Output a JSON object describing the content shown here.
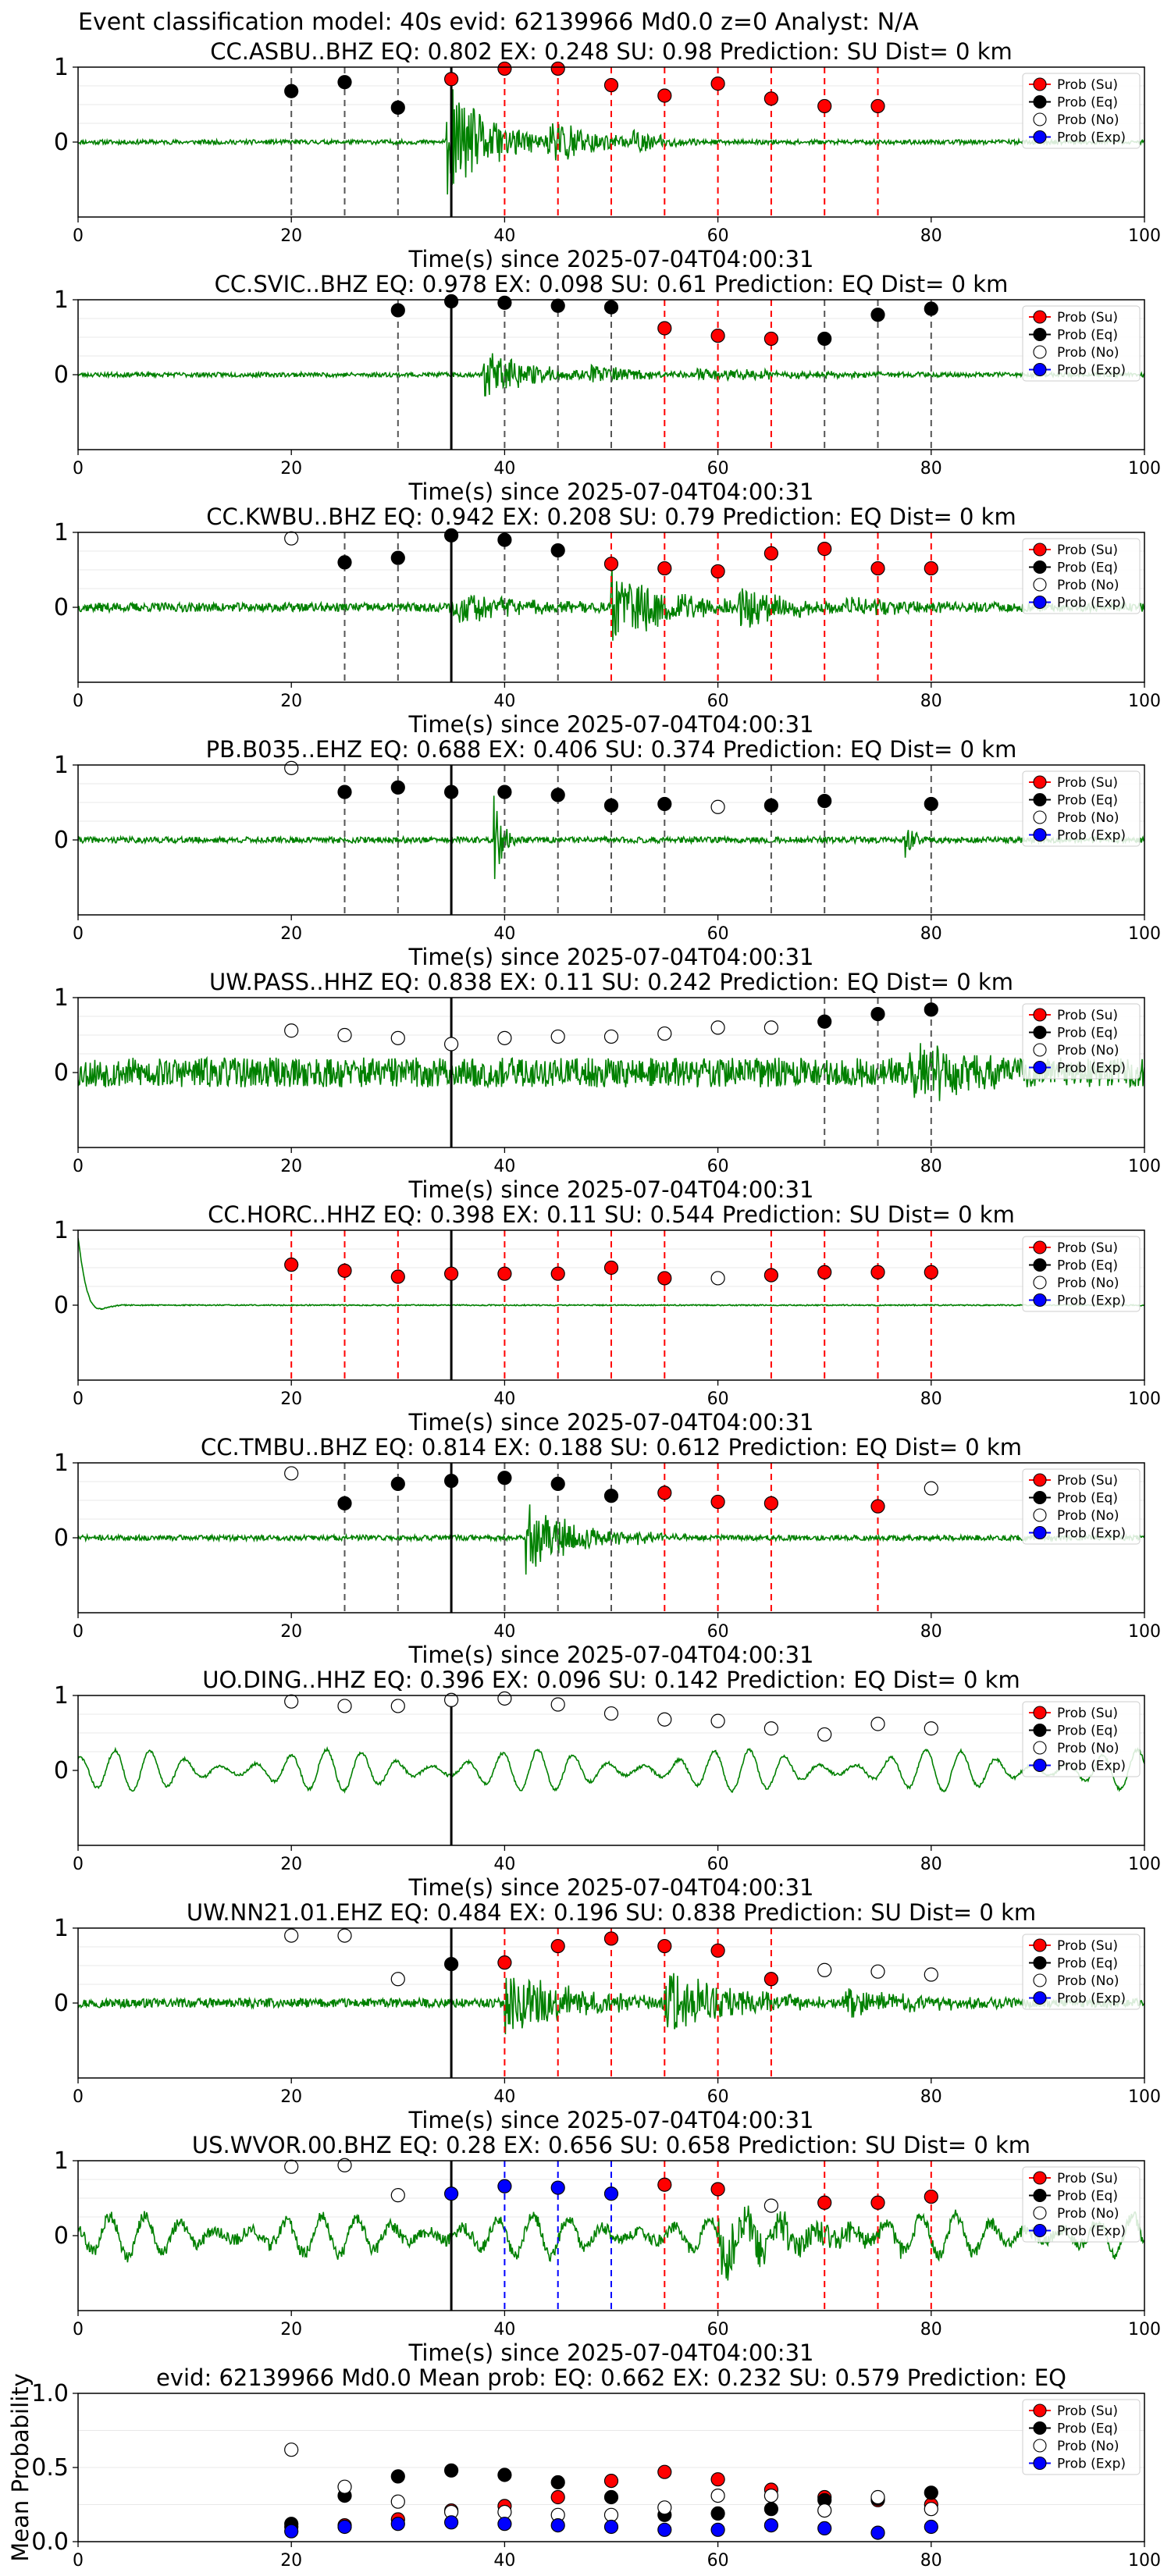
{
  "suptitle": "Event classification model: 40s evid: 62139966 Md0.0 z=0 Analyst: N/A",
  "legend_labels": [
    "Prob (Su)",
    "Prob (Eq)",
    "Prob (No)",
    "Prob (Exp)"
  ],
  "colors": {
    "su": "#ff0000",
    "eq": "#000000",
    "no": "#ffffff",
    "exp": "#0000ff",
    "waveform": "#008000",
    "pick": "#000000"
  },
  "chart_data": [
    {
      "type": "line",
      "title": "CC.ASBU..BHZ   EQ: 0.802  EX: 0.248  SU: 0.98   Prediction: SU    Dist= 0 km",
      "xlabel": "Time(s) since 2025-07-04T04:00:31",
      "xlim": [
        0,
        100
      ],
      "ylim": [
        -1,
        1
      ],
      "xticks": [
        "0",
        "20",
        "40",
        "60",
        "80",
        "100"
      ],
      "yticks": [
        "1",
        "0"
      ],
      "pick_time": 35,
      "waveform": {
        "seed": 11,
        "noise": 0.03,
        "bursts": [
          [
            34.5,
            44,
            0.8
          ],
          [
            44,
            52,
            0.4
          ],
          [
            52,
            58,
            0.18
          ]
        ]
      },
      "series": [
        {
          "name": "Prob (Su)",
          "color": "#ff0000",
          "x": [
            35,
            40,
            45,
            50,
            55,
            60,
            65,
            70,
            75
          ],
          "y": [
            0.84,
            0.98,
            0.98,
            0.76,
            0.62,
            0.78,
            0.58,
            0.48,
            0.48
          ]
        },
        {
          "name": "Prob (Eq)",
          "color": "#000000",
          "x": [
            20,
            25,
            30
          ],
          "y": [
            0.68,
            0.8,
            0.46
          ]
        },
        {
          "name": "Prob (No)",
          "color": "#ffffff",
          "x": [],
          "y": []
        },
        {
          "name": "Prob (Exp)",
          "color": "#0000ff",
          "x": [],
          "y": []
        }
      ]
    },
    {
      "type": "line",
      "title": "CC.SVIC..BHZ   EQ: 0.978  EX: 0.098  SU: 0.61   Prediction: EQ    Dist= 0 km",
      "xlabel": "Time(s) since 2025-07-04T04:00:31",
      "xlim": [
        0,
        100
      ],
      "ylim": [
        -1,
        1
      ],
      "xticks": [
        "0",
        "20",
        "40",
        "60",
        "80",
        "100"
      ],
      "yticks": [
        "1",
        "0"
      ],
      "pick_time": 35,
      "waveform": {
        "seed": 23,
        "noise": 0.03,
        "bursts": [
          [
            38,
            48,
            0.35
          ],
          [
            48,
            58,
            0.14
          ],
          [
            58,
            80,
            0.08
          ]
        ]
      },
      "series": [
        {
          "name": "Prob (Su)",
          "color": "#ff0000",
          "x": [
            55,
            60,
            65
          ],
          "y": [
            0.62,
            0.52,
            0.48
          ]
        },
        {
          "name": "Prob (Eq)",
          "color": "#000000",
          "x": [
            30,
            35,
            40,
            45,
            50,
            70,
            75,
            80
          ],
          "y": [
            0.86,
            0.98,
            0.96,
            0.92,
            0.9,
            0.48,
            0.8,
            0.88
          ]
        },
        {
          "name": "Prob (No)",
          "color": "#ffffff",
          "x": [],
          "y": []
        },
        {
          "name": "Prob (Exp)",
          "color": "#0000ff",
          "x": [],
          "y": []
        }
      ]
    },
    {
      "type": "line",
      "title": "CC.KWBU..BHZ   EQ: 0.942  EX: 0.208  SU: 0.79   Prediction: EQ    Dist= 0 km",
      "xlabel": "Time(s) since 2025-07-04T04:00:31",
      "xlim": [
        0,
        100
      ],
      "ylim": [
        -1,
        1
      ],
      "xticks": [
        "0",
        "20",
        "40",
        "60",
        "80",
        "100"
      ],
      "yticks": [
        "1",
        "0"
      ],
      "pick_time": 35,
      "waveform": {
        "seed": 37,
        "noise": 0.06,
        "bursts": [
          [
            35,
            50,
            0.2
          ],
          [
            50,
            62,
            0.5
          ],
          [
            62,
            72,
            0.3
          ],
          [
            72,
            88,
            0.12
          ]
        ]
      },
      "series": [
        {
          "name": "Prob (Su)",
          "color": "#ff0000",
          "x": [
            50,
            55,
            60,
            65,
            70,
            75,
            80
          ],
          "y": [
            0.58,
            0.52,
            0.48,
            0.72,
            0.78,
            0.52,
            0.52
          ]
        },
        {
          "name": "Prob (Eq)",
          "color": "#000000",
          "x": [
            25,
            30,
            35,
            40,
            45
          ],
          "y": [
            0.6,
            0.66,
            0.96,
            0.9,
            0.76
          ]
        },
        {
          "name": "Prob (No)",
          "color": "#ffffff",
          "x": [
            20
          ],
          "y": [
            0.92
          ]
        },
        {
          "name": "Prob (Exp)",
          "color": "#0000ff",
          "x": [],
          "y": []
        }
      ]
    },
    {
      "type": "line",
      "title": "PB.B035..EHZ   EQ: 0.688  EX: 0.406  SU: 0.374   Prediction: EQ    Dist= 0 km",
      "xlabel": "Time(s) since 2025-07-04T04:00:31",
      "xlim": [
        0,
        100
      ],
      "ylim": [
        -1,
        1
      ],
      "xticks": [
        "0",
        "20",
        "40",
        "60",
        "80",
        "100"
      ],
      "yticks": [
        "1",
        "0"
      ],
      "pick_time": 35,
      "waveform": {
        "seed": 41,
        "noise": 0.04,
        "bursts": [
          [
            39,
            41,
            0.6
          ],
          [
            77.5,
            79,
            0.35
          ]
        ]
      },
      "series": [
        {
          "name": "Prob (Su)",
          "color": "#ff0000",
          "x": [],
          "y": []
        },
        {
          "name": "Prob (Eq)",
          "color": "#000000",
          "x": [
            25,
            30,
            35,
            40,
            45,
            50,
            55,
            65,
            70,
            80
          ],
          "y": [
            0.64,
            0.7,
            0.64,
            0.64,
            0.6,
            0.46,
            0.48,
            0.46,
            0.52,
            0.48
          ]
        },
        {
          "name": "Prob (No)",
          "color": "#ffffff",
          "x": [
            20,
            60
          ],
          "y": [
            0.96,
            0.44
          ]
        },
        {
          "name": "Prob (Exp)",
          "color": "#0000ff",
          "x": [],
          "y": []
        }
      ]
    },
    {
      "type": "line",
      "title": "UW.PASS..HHZ   EQ: 0.838  EX: 0.11  SU: 0.242   Prediction: EQ    Dist= 0 km",
      "xlabel": "Time(s) since 2025-07-04T04:00:31",
      "xlim": [
        0,
        100
      ],
      "ylim": [
        -1,
        1
      ],
      "xticks": [
        "0",
        "20",
        "40",
        "60",
        "80",
        "100"
      ],
      "yticks": [
        "1",
        "0"
      ],
      "pick_time": 35,
      "waveform": {
        "seed": 53,
        "noise": 0.2,
        "bursts": [
          [
            78,
            86,
            0.45
          ]
        ]
      },
      "series": [
        {
          "name": "Prob (Su)",
          "color": "#ff0000",
          "x": [],
          "y": []
        },
        {
          "name": "Prob (Eq)",
          "color": "#000000",
          "x": [
            70,
            75,
            80
          ],
          "y": [
            0.68,
            0.78,
            0.84
          ]
        },
        {
          "name": "Prob (No)",
          "color": "#ffffff",
          "x": [
            20,
            25,
            30,
            35,
            40,
            45,
            50,
            55,
            60,
            65
          ],
          "y": [
            0.56,
            0.5,
            0.46,
            0.38,
            0.46,
            0.48,
            0.48,
            0.52,
            0.6,
            0.6
          ]
        },
        {
          "name": "Prob (Exp)",
          "color": "#0000ff",
          "x": [],
          "y": []
        }
      ]
    },
    {
      "type": "line",
      "title": "CC.HORC..HHZ   EQ: 0.398  EX: 0.11  SU: 0.544   Prediction: SU    Dist= 0 km",
      "xlabel": "Time(s) since 2025-07-04T04:00:31",
      "xlim": [
        0,
        100
      ],
      "ylim": [
        -1,
        1
      ],
      "xticks": [
        "0",
        "20",
        "40",
        "60",
        "80",
        "100"
      ],
      "yticks": [
        "1",
        "0"
      ],
      "pick_time": 35,
      "waveform": {
        "seed": 61,
        "noise": 0.008,
        "bursts": [],
        "transient": true
      },
      "series": [
        {
          "name": "Prob (Su)",
          "color": "#ff0000",
          "x": [
            20,
            25,
            30,
            35,
            40,
            45,
            50,
            55,
            65,
            70,
            75,
            80
          ],
          "y": [
            0.54,
            0.46,
            0.38,
            0.42,
            0.42,
            0.42,
            0.5,
            0.36,
            0.4,
            0.44,
            0.44,
            0.44
          ]
        },
        {
          "name": "Prob (Eq)",
          "color": "#000000",
          "x": [],
          "y": []
        },
        {
          "name": "Prob (No)",
          "color": "#ffffff",
          "x": [
            60
          ],
          "y": [
            0.36
          ]
        },
        {
          "name": "Prob (Exp)",
          "color": "#0000ff",
          "x": [],
          "y": []
        }
      ]
    },
    {
      "type": "line",
      "title": "CC.TMBU..BHZ   EQ: 0.814  EX: 0.188  SU: 0.612   Prediction: EQ    Dist= 0 km",
      "xlabel": "Time(s) since 2025-07-04T04:00:31",
      "xlim": [
        0,
        100
      ],
      "ylim": [
        -1,
        1
      ],
      "xticks": [
        "0",
        "20",
        "40",
        "60",
        "80",
        "100"
      ],
      "yticks": [
        "1",
        "0"
      ],
      "pick_time": 35,
      "waveform": {
        "seed": 71,
        "noise": 0.035,
        "bursts": [
          [
            42,
            52,
            0.5
          ],
          [
            52,
            58,
            0.1
          ]
        ]
      },
      "series": [
        {
          "name": "Prob (Su)",
          "color": "#ff0000",
          "x": [
            55,
            60,
            65,
            75
          ],
          "y": [
            0.6,
            0.48,
            0.46,
            0.42
          ]
        },
        {
          "name": "Prob (Eq)",
          "color": "#000000",
          "x": [
            25,
            30,
            35,
            40,
            45,
            50
          ],
          "y": [
            0.46,
            0.72,
            0.76,
            0.8,
            0.72,
            0.56
          ]
        },
        {
          "name": "Prob (No)",
          "color": "#ffffff",
          "x": [
            20,
            80
          ],
          "y": [
            0.86,
            0.66
          ]
        },
        {
          "name": "Prob (Exp)",
          "color": "#0000ff",
          "x": [],
          "y": []
        }
      ]
    },
    {
      "type": "line",
      "title": "UO.DING..HHZ   EQ: 0.396  EX: 0.096  SU: 0.142   Prediction: EQ    Dist= 0 km",
      "xlabel": "Time(s) since 2025-07-04T04:00:31",
      "xlim": [
        0,
        100
      ],
      "ylim": [
        -1,
        1
      ],
      "xticks": [
        "0",
        "20",
        "40",
        "60",
        "80",
        "100"
      ],
      "yticks": [
        "1",
        "0"
      ],
      "pick_time": 35,
      "waveform": {
        "seed": 83,
        "noise": 0.02,
        "bursts": [],
        "swell": true
      },
      "series": [
        {
          "name": "Prob (Su)",
          "color": "#ff0000",
          "x": [],
          "y": []
        },
        {
          "name": "Prob (Eq)",
          "color": "#000000",
          "x": [],
          "y": []
        },
        {
          "name": "Prob (No)",
          "color": "#ffffff",
          "x": [
            20,
            25,
            30,
            35,
            40,
            45,
            50,
            55,
            60,
            65,
            70,
            75,
            80
          ],
          "y": [
            0.92,
            0.86,
            0.86,
            0.94,
            0.96,
            0.88,
            0.76,
            0.68,
            0.66,
            0.56,
            0.48,
            0.62,
            0.56
          ]
        },
        {
          "name": "Prob (Exp)",
          "color": "#0000ff",
          "x": [],
          "y": []
        }
      ]
    },
    {
      "type": "line",
      "title": "UW.NN21.01.EHZ   EQ: 0.484  EX: 0.196  SU: 0.838   Prediction: SU    Dist= 0 km",
      "xlabel": "Time(s) since 2025-07-04T04:00:31",
      "xlim": [
        0,
        100
      ],
      "ylim": [
        -1,
        1
      ],
      "xticks": [
        "0",
        "20",
        "40",
        "60",
        "80",
        "100"
      ],
      "yticks": [
        "1",
        "0"
      ],
      "pick_time": 35,
      "waveform": {
        "seed": 97,
        "noise": 0.06,
        "bursts": [
          [
            40,
            55,
            0.45
          ],
          [
            55,
            72,
            0.4
          ],
          [
            72,
            88,
            0.18
          ]
        ]
      },
      "series": [
        {
          "name": "Prob (Su)",
          "color": "#ff0000",
          "x": [
            40,
            45,
            50,
            55,
            60,
            65
          ],
          "y": [
            0.54,
            0.76,
            0.86,
            0.76,
            0.7,
            0.32
          ]
        },
        {
          "name": "Prob (Eq)",
          "color": "#000000",
          "x": [
            35
          ],
          "y": [
            0.52
          ]
        },
        {
          "name": "Prob (No)",
          "color": "#ffffff",
          "x": [
            20,
            25,
            30,
            70,
            75,
            80
          ],
          "y": [
            0.9,
            0.9,
            0.32,
            0.44,
            0.42,
            0.38
          ]
        },
        {
          "name": "Prob (Exp)",
          "color": "#0000ff",
          "x": [],
          "y": []
        }
      ]
    },
    {
      "type": "line",
      "title": "US.WVOR.00.BHZ   EQ: 0.28  EX: 0.656  SU: 0.658   Prediction: SU    Dist= 0 km",
      "xlabel": "Time(s) since 2025-07-04T04:00:31",
      "xlim": [
        0,
        100
      ],
      "ylim": [
        -1,
        1
      ],
      "xticks": [
        "0",
        "20",
        "40",
        "60",
        "80",
        "100"
      ],
      "yticks": [
        "1",
        "0"
      ],
      "pick_time": 35,
      "waveform": {
        "seed": 109,
        "noise": 0.08,
        "bursts": [
          [
            60,
            80,
            0.35
          ]
        ],
        "swell": true
      },
      "series": [
        {
          "name": "Prob (Su)",
          "color": "#ff0000",
          "x": [
            55,
            60,
            70,
            75,
            80
          ],
          "y": [
            0.68,
            0.62,
            0.44,
            0.44,
            0.52
          ]
        },
        {
          "name": "Prob (Eq)",
          "color": "#000000",
          "x": [],
          "y": []
        },
        {
          "name": "Prob (No)",
          "color": "#ffffff",
          "x": [
            20,
            25,
            30,
            65
          ],
          "y": [
            0.92,
            0.94,
            0.54,
            0.4
          ]
        },
        {
          "name": "Prob (Exp)",
          "color": "#0000ff",
          "x": [
            35,
            40,
            45,
            50
          ],
          "y": [
            0.56,
            0.66,
            0.64,
            0.56
          ]
        }
      ]
    },
    {
      "type": "scatter",
      "title": "evid: 62139966  Md0.0   Mean prob:   EQ: 0.662  EX: 0.232  SU: 0.579   Prediction: EQ",
      "ylabel": "Mean Probability",
      "xlim": [
        0,
        100
      ],
      "ylim": [
        0,
        1
      ],
      "xticks": [
        "0",
        "20",
        "40",
        "60",
        "80",
        "100"
      ],
      "yticks": [
        "1.0",
        "0.5",
        "0.0"
      ],
      "series": [
        {
          "name": "Prob (Su)",
          "color": "#ff0000",
          "x": [
            20,
            25,
            30,
            35,
            40,
            45,
            50,
            55,
            60,
            65,
            70,
            75,
            80
          ],
          "y": [
            0.1,
            0.11,
            0.15,
            0.21,
            0.24,
            0.3,
            0.41,
            0.47,
            0.42,
            0.35,
            0.3,
            0.28,
            0.25
          ]
        },
        {
          "name": "Prob (Eq)",
          "color": "#000000",
          "x": [
            20,
            25,
            30,
            35,
            40,
            45,
            50,
            55,
            60,
            65,
            70,
            75,
            80
          ],
          "y": [
            0.12,
            0.31,
            0.44,
            0.48,
            0.45,
            0.4,
            0.3,
            0.18,
            0.19,
            0.22,
            0.28,
            0.29,
            0.33
          ]
        },
        {
          "name": "Prob (No)",
          "color": "#ffffff",
          "x": [
            20,
            25,
            30,
            35,
            40,
            45,
            50,
            55,
            60,
            65,
            70,
            75,
            80
          ],
          "y": [
            0.62,
            0.37,
            0.27,
            0.2,
            0.2,
            0.18,
            0.18,
            0.23,
            0.31,
            0.31,
            0.21,
            0.3,
            0.22
          ]
        },
        {
          "name": "Prob (Exp)",
          "color": "#0000ff",
          "x": [
            20,
            25,
            30,
            35,
            40,
            45,
            50,
            55,
            60,
            65,
            70,
            75,
            80
          ],
          "y": [
            0.07,
            0.1,
            0.12,
            0.13,
            0.12,
            0.11,
            0.1,
            0.08,
            0.08,
            0.11,
            0.09,
            0.06,
            0.1
          ]
        }
      ]
    }
  ]
}
